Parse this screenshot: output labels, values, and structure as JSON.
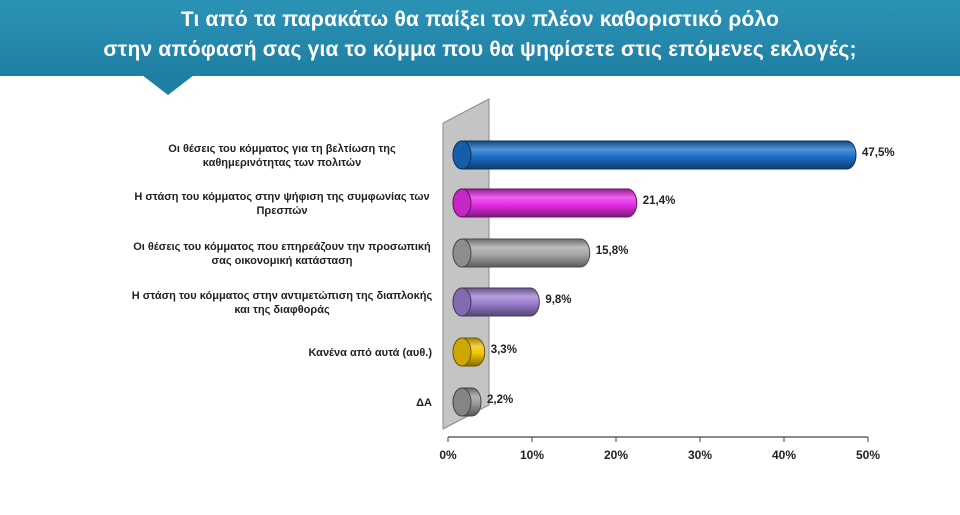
{
  "title": {
    "line1": "Τι από τα παρακάτω θα παίξει τον πλέον καθοριστικό ρόλο",
    "line2": "στην απόφασή σας για το κόμμα που θα ψηφίσετε στις επόμενες εκλογές;"
  },
  "colors": {
    "banner": "#2286ab",
    "wall": "#c4c4c4"
  },
  "chart_data": {
    "type": "bar",
    "orientation": "horizontal",
    "style": "3d-cylinder",
    "categories": [
      [
        "Οι θέσεις του κόμματος για τη βελτίωση της",
        "καθημερινότητας των πολιτών"
      ],
      [
        "Η στάση του κόμματος στην ψήφιση της συμφωνίας των",
        "Πρεσπών"
      ],
      [
        "Οι θέσεις του κόμματος που επηρεάζουν την προσωπική",
        "σας οικονομική κατάσταση"
      ],
      [
        "Η στάση του κόμματος στην αντιμετώπιση της διαπλοκής",
        "και της διαφθοράς"
      ],
      [
        "Κανένα από αυτά (αυθ.)"
      ],
      [
        "ΔΑ"
      ]
    ],
    "values": [
      47.5,
      21.4,
      15.8,
      9.8,
      3.3,
      2.2
    ],
    "value_labels": [
      "47,5%",
      "21,4%",
      "15,8%",
      "9,8%",
      "3,3%",
      "2,2%"
    ],
    "bar_colors": [
      "#1a6fc9",
      "#e62ee6",
      "#a8a5a5",
      "#9b7ed0",
      "#f2c500",
      "#9c9c9c"
    ],
    "xlim": [
      0,
      50
    ],
    "xticks": [
      0,
      10,
      20,
      30,
      40,
      50
    ],
    "xtick_labels": [
      "0%",
      "10%",
      "20%",
      "30%",
      "40%",
      "50%"
    ],
    "grid": false,
    "legend": "none"
  }
}
